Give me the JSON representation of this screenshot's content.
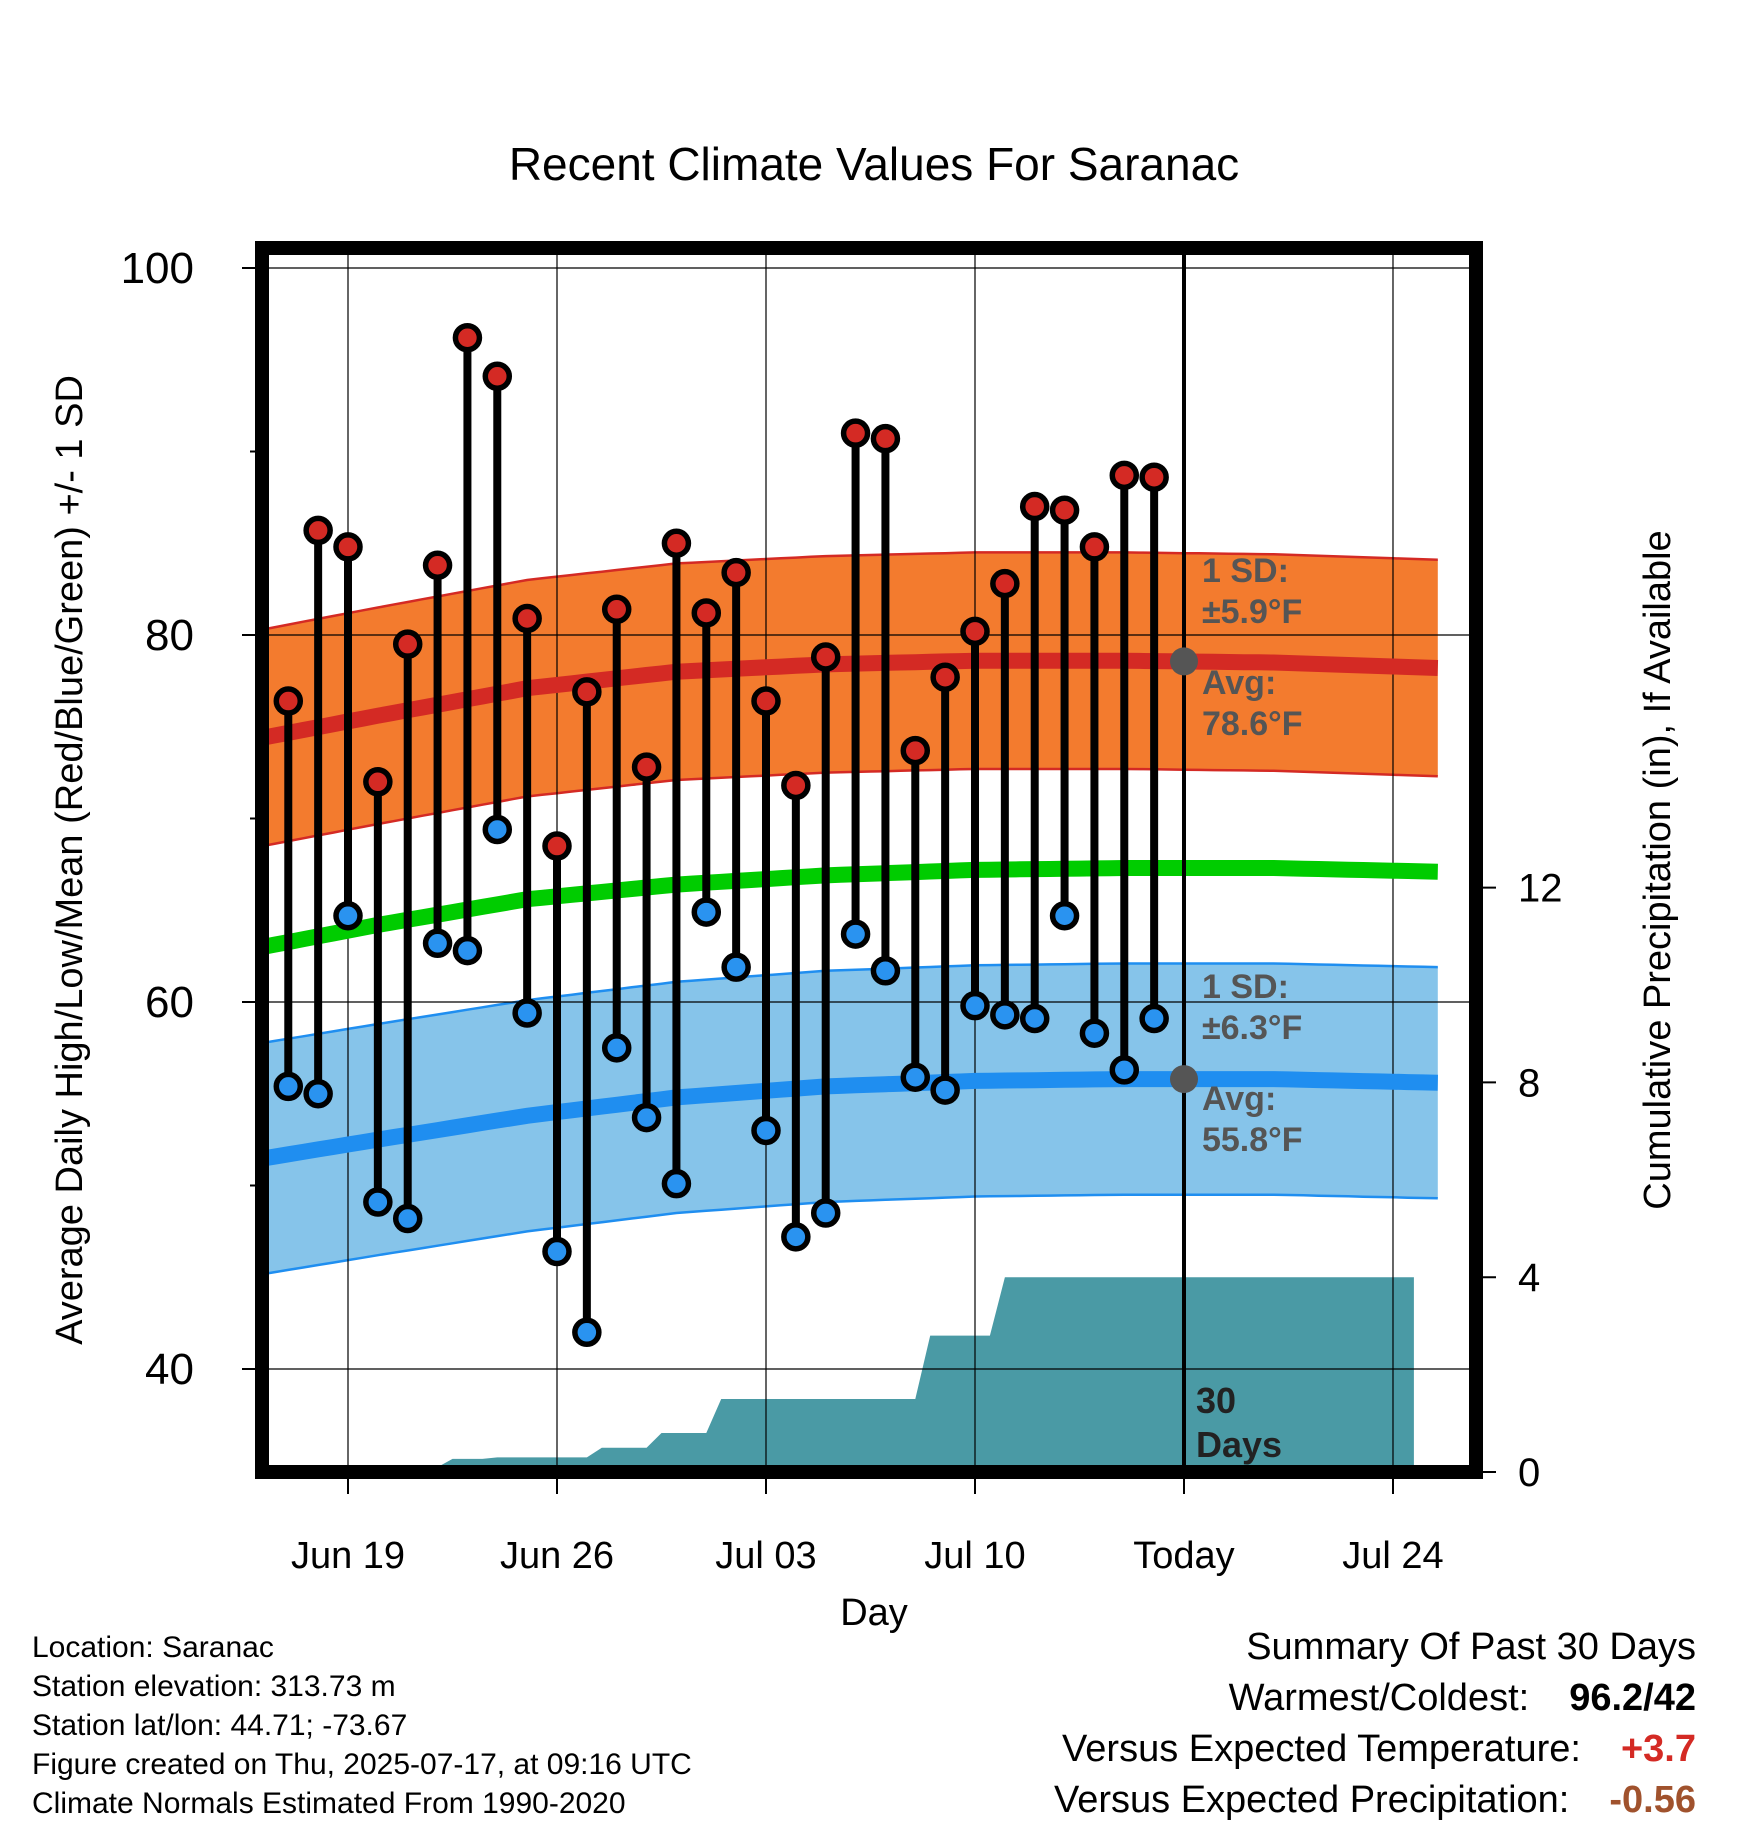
{
  "chart_data": {
    "type": "line",
    "title": "Recent Climate Values For Saranac",
    "xlabel": "Day",
    "ylabel": "Average Daily High/Low/Mean (Red/Blue/Green) +/- 1 SD",
    "y2label": "Cumulative Precipitation (in), If Available",
    "ylim": [
      34.5,
      101.5
    ],
    "y2lim": [
      0,
      24.2
    ],
    "yticks": [
      100,
      80,
      60,
      40
    ],
    "y2ticks": [
      0,
      4,
      8,
      12
    ],
    "xlim": [
      15.7,
      28.4
    ],
    "xticks": [
      {
        "day": 19,
        "label": "Jun 19"
      },
      {
        "day": 26,
        "label": "Jun 26"
      },
      {
        "day": 33,
        "label": "Jul 03"
      },
      {
        "day": 40,
        "label": "Jul 10"
      },
      {
        "day": 47,
        "label": "Today"
      },
      {
        "day": 54,
        "label": "Jul 24"
      }
    ],
    "today_day": 47,
    "today_label": "30 Days",
    "days": [
      17,
      18,
      19,
      20,
      21,
      22,
      23,
      24,
      25,
      26,
      27,
      28,
      29,
      30,
      31,
      32,
      33,
      34,
      35,
      36,
      37,
      38,
      39,
      40,
      41,
      42,
      43,
      44,
      45,
      46
    ],
    "highs": [
      76.4,
      85.7,
      84.8,
      72.0,
      79.5,
      83.8,
      96.2,
      94.1,
      80.9,
      68.5,
      76.9,
      81.4,
      72.8,
      85.0,
      81.2,
      83.4,
      76.4,
      71.8,
      78.8,
      91.0,
      90.7,
      73.7,
      77.7,
      80.2,
      82.8,
      87.0,
      86.8,
      84.8,
      88.7,
      88.6
    ],
    "lows": [
      55.4,
      55.0,
      64.7,
      49.1,
      48.2,
      63.2,
      62.8,
      69.4,
      59.4,
      46.4,
      42.0,
      57.5,
      53.7,
      50.1,
      64.9,
      61.9,
      53.0,
      47.2,
      48.5,
      63.7,
      61.7,
      55.9,
      55.2,
      59.8,
      59.3,
      59.1,
      64.7,
      58.3,
      56.3,
      59.1
    ],
    "normal_high": {
      "days": [
        15.5,
        20,
        25,
        30,
        35,
        40,
        45,
        50,
        55.5
      ],
      "values": [
        74.2,
        75.6,
        77.1,
        78.0,
        78.4,
        78.6,
        78.6,
        78.5,
        78.2
      ]
    },
    "normal_low": {
      "days": [
        15.5,
        20,
        25,
        30,
        35,
        40,
        45,
        50,
        55.5
      ],
      "values": [
        51.3,
        52.5,
        53.8,
        54.8,
        55.4,
        55.7,
        55.8,
        55.8,
        55.6
      ]
    },
    "normal_mean": {
      "days": [
        15.5,
        20,
        25,
        30,
        35,
        40,
        45,
        50,
        55.5
      ],
      "values": [
        62.8,
        64.2,
        65.6,
        66.4,
        66.9,
        67.2,
        67.3,
        67.3,
        67.1
      ]
    },
    "sd_high": 5.9,
    "sd_low": 6.3,
    "precip": {
      "days": [
        15.7,
        19,
        19.5,
        20,
        20.5,
        21,
        21.5,
        22,
        22.5,
        23,
        23.5,
        24,
        24.5,
        25,
        25.5,
        26,
        26.5,
        27,
        27.5,
        28,
        28.5,
        29,
        29.5,
        30,
        30.5,
        31,
        31.5,
        32,
        32.5,
        33,
        33.5,
        34,
        34.5,
        35,
        35.5,
        36,
        36.5,
        37,
        37.5,
        38,
        38.5,
        39,
        39.5,
        40,
        40.5,
        41,
        41.5,
        42,
        42.5,
        43,
        43.5,
        54.7
      ],
      "values": [
        0,
        0,
        0.05,
        0.05,
        0.1,
        0.1,
        0.1,
        0.1,
        0.27,
        0.27,
        0.27,
        0.3,
        0.3,
        0.3,
        0.3,
        0.3,
        0.3,
        0.3,
        0.5,
        0.5,
        0.5,
        0.5,
        0.8,
        0.8,
        0.8,
        0.8,
        1.5,
        1.5,
        1.5,
        1.5,
        1.5,
        1.5,
        1.5,
        1.5,
        1.5,
        1.5,
        1.5,
        1.5,
        1.5,
        1.5,
        2.8,
        2.8,
        2.8,
        2.8,
        2.8,
        4.0,
        4.0,
        4.0,
        4.0,
        4.0,
        4.0,
        4.0
      ]
    },
    "annotations": {
      "sd_high_label": "1 SD:",
      "sd_high_value": "±5.9°F",
      "avg_high_label": "Avg:",
      "avg_high_value": "78.6°F",
      "sd_low_label": "1 SD:",
      "sd_low_value": "±6.3°F",
      "avg_low_label": "Avg:",
      "avg_low_value": "55.8°F",
      "today_text_line1": "30",
      "today_text_line2": "Days"
    },
    "colors": {
      "high_band": "#f37b2e",
      "high_line": "#d42a24",
      "low_band": "#86c4ea",
      "low_line": "#1f8ef0",
      "mean_line": "#00cc00",
      "precip": "#4a9aa5",
      "high_dot": "#d42a24",
      "low_dot": "#2a93f0",
      "annotation": "#555555"
    }
  },
  "footer": {
    "location": "Location: Saranac",
    "elevation": "Station elevation: 313.73 m",
    "latlon": "Station lat/lon: 44.71; -73.67",
    "created": "Figure created on Thu, 2025-07-17, at 09:16 UTC",
    "normals": "Climate Normals Estimated From 1990-2020"
  },
  "summary": {
    "title": "Summary Of Past 30 Days",
    "warmest_label": "Warmest/Coldest:",
    "warmest_value": "96.2/42",
    "temp_label": "Versus Expected Temperature:",
    "temp_value": "+3.7",
    "temp_color": "#d42a24",
    "precip_label": "Versus Expected Precipitation:",
    "precip_value": "-0.56",
    "precip_color": "#a0522d"
  }
}
